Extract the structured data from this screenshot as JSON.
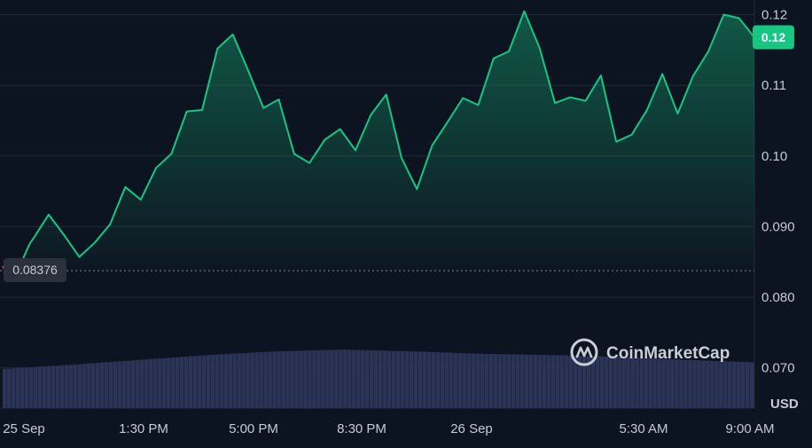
{
  "chart_data": {
    "type": "area",
    "unit": "USD",
    "x_ticks": [
      "25 Sep",
      "1:30 PM",
      "5:00 PM",
      "8:30 PM",
      "26 Sep",
      "5:30 AM",
      "9:00 AM"
    ],
    "y_ticks": [
      "0.070",
      "0.080",
      "0.090",
      "0.10",
      "0.11",
      "0.12"
    ],
    "ylim": [
      0.0643,
      0.1217
    ],
    "reference_value": 0.08376,
    "reference_label": "0.08376",
    "current_price_label": "0.12",
    "current_price": 0.1168,
    "series": [
      {
        "x_hours": [
          0,
          0.1,
          0.2,
          0.3,
          0.4,
          0.5,
          0.6,
          0.7,
          0.8,
          0.9,
          1.0,
          1.5,
          2.0,
          2.5,
          3.0,
          3.5,
          4.0,
          4.5,
          5.0,
          5.5,
          6.0,
          6.5,
          7.0,
          7.5,
          8.0,
          8.5,
          9.0,
          9.5,
          10.0,
          10.5,
          11.0,
          11.5,
          12.0,
          12.5,
          13.0,
          13.5,
          14.0,
          14.5,
          15.0,
          15.5,
          16.0,
          16.5,
          17.0,
          17.5,
          18.0,
          18.5,
          19.0,
          19.5,
          20.0,
          20.5,
          21.0,
          21.5,
          22.0,
          22.5,
          23.0,
          23.5,
          24.0,
          24.5
        ],
        "values": [
          0.0844,
          0.0836,
          0.0828,
          0.0823,
          0.0826,
          0.0834,
          0.0846,
          0.0858,
          0.0868,
          0.0877,
          0.0883,
          0.0917,
          0.0888,
          0.0857,
          0.0877,
          0.0903,
          0.0956,
          0.0938,
          0.0983,
          0.1003,
          0.1063,
          0.1065,
          0.1152,
          0.1172,
          0.1121,
          0.1068,
          0.108,
          0.1003,
          0.099,
          0.1023,
          0.1038,
          0.1008,
          0.1058,
          0.1087,
          0.0997,
          0.0953,
          0.1015,
          0.1048,
          0.1082,
          0.1072,
          0.1138,
          0.1148,
          0.1205,
          0.1153,
          0.1075,
          0.1083,
          0.1078,
          0.1114,
          0.102,
          0.103,
          0.1065,
          0.1116,
          0.106,
          0.1113,
          0.1148,
          0.12,
          0.1195,
          0.1168
        ],
        "colors": {
          "line_up": "#16c784",
          "line_down": "#ea3943"
        }
      }
    ],
    "volume": [
      0.065,
      0.072,
      0.08,
      0.088,
      0.094,
      0.097,
      0.094,
      0.09,
      0.088,
      0.085,
      0.08,
      0.076
    ]
  },
  "brand": {
    "name": "CoinMarketCap",
    "icon": "coinmarketcap-logo-icon"
  },
  "colors": {
    "background": "#0d1421",
    "grid": "#222a37",
    "volume_bar": "#2b3456",
    "badge": "#16c784"
  }
}
